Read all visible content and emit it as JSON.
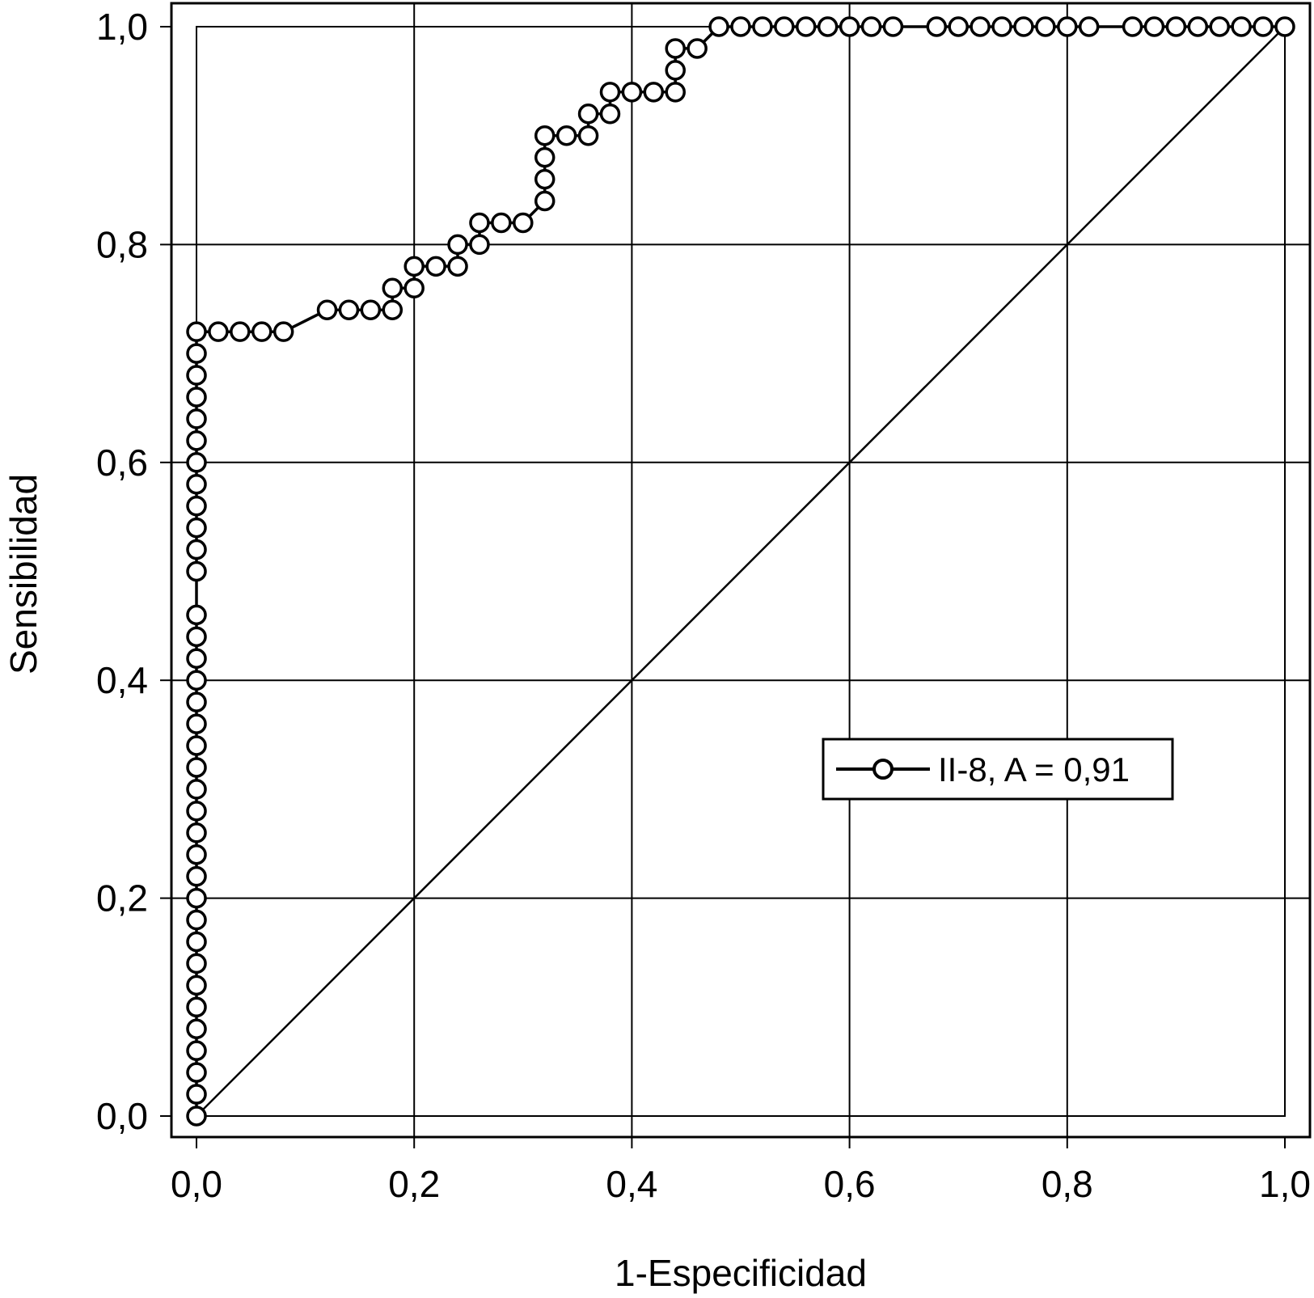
{
  "chart_data": {
    "type": "line",
    "xlabel": "1-Especificidad",
    "ylabel": "Sensibilidad",
    "xlim": [
      0.0,
      1.0
    ],
    "ylim": [
      0.0,
      1.0
    ],
    "x_ticks": [
      "0,0",
      "0,2",
      "0,4",
      "0,6",
      "0,8",
      "1,0"
    ],
    "y_ticks": [
      "0,0",
      "0,2",
      "0,4",
      "0,6",
      "0,8",
      "1,0"
    ],
    "grid": true,
    "legend_position": "middle-right",
    "reference_line": {
      "from": [
        0,
        0
      ],
      "to": [
        1,
        1
      ]
    },
    "colors": {
      "line": "#000000",
      "marker_fill": "#ffffff"
    },
    "series": [
      {
        "name": "II-8, A = 0,91",
        "marker": "open-circle",
        "points": [
          [
            0.0,
            0.0
          ],
          [
            0.0,
            0.02
          ],
          [
            0.0,
            0.04
          ],
          [
            0.0,
            0.06
          ],
          [
            0.0,
            0.08
          ],
          [
            0.0,
            0.1
          ],
          [
            0.0,
            0.12
          ],
          [
            0.0,
            0.14
          ],
          [
            0.0,
            0.16
          ],
          [
            0.0,
            0.18
          ],
          [
            0.0,
            0.2
          ],
          [
            0.0,
            0.22
          ],
          [
            0.0,
            0.24
          ],
          [
            0.0,
            0.26
          ],
          [
            0.0,
            0.28
          ],
          [
            0.0,
            0.3
          ],
          [
            0.0,
            0.32
          ],
          [
            0.0,
            0.34
          ],
          [
            0.0,
            0.36
          ],
          [
            0.0,
            0.38
          ],
          [
            0.0,
            0.4
          ],
          [
            0.0,
            0.42
          ],
          [
            0.0,
            0.44
          ],
          [
            0.0,
            0.46
          ],
          [
            0.0,
            0.5
          ],
          [
            0.0,
            0.52
          ],
          [
            0.0,
            0.54
          ],
          [
            0.0,
            0.56
          ],
          [
            0.0,
            0.58
          ],
          [
            0.0,
            0.6
          ],
          [
            0.0,
            0.62
          ],
          [
            0.0,
            0.64
          ],
          [
            0.0,
            0.66
          ],
          [
            0.0,
            0.68
          ],
          [
            0.0,
            0.7
          ],
          [
            0.0,
            0.72
          ],
          [
            0.02,
            0.72
          ],
          [
            0.04,
            0.72
          ],
          [
            0.06,
            0.72
          ],
          [
            0.08,
            0.72
          ],
          [
            0.12,
            0.74
          ],
          [
            0.14,
            0.74
          ],
          [
            0.16,
            0.74
          ],
          [
            0.18,
            0.74
          ],
          [
            0.18,
            0.76
          ],
          [
            0.2,
            0.76
          ],
          [
            0.2,
            0.78
          ],
          [
            0.22,
            0.78
          ],
          [
            0.24,
            0.78
          ],
          [
            0.24,
            0.8
          ],
          [
            0.26,
            0.8
          ],
          [
            0.26,
            0.82
          ],
          [
            0.28,
            0.82
          ],
          [
            0.3,
            0.82
          ],
          [
            0.32,
            0.84
          ],
          [
            0.32,
            0.86
          ],
          [
            0.32,
            0.88
          ],
          [
            0.32,
            0.9
          ],
          [
            0.34,
            0.9
          ],
          [
            0.36,
            0.9
          ],
          [
            0.36,
            0.92
          ],
          [
            0.38,
            0.92
          ],
          [
            0.38,
            0.94
          ],
          [
            0.4,
            0.94
          ],
          [
            0.42,
            0.94
          ],
          [
            0.44,
            0.94
          ],
          [
            0.44,
            0.96
          ],
          [
            0.44,
            0.98
          ],
          [
            0.46,
            0.98
          ],
          [
            0.48,
            1.0
          ],
          [
            0.5,
            1.0
          ],
          [
            0.52,
            1.0
          ],
          [
            0.54,
            1.0
          ],
          [
            0.56,
            1.0
          ],
          [
            0.58,
            1.0
          ],
          [
            0.6,
            1.0
          ],
          [
            0.62,
            1.0
          ],
          [
            0.64,
            1.0
          ],
          [
            0.68,
            1.0
          ],
          [
            0.7,
            1.0
          ],
          [
            0.72,
            1.0
          ],
          [
            0.74,
            1.0
          ],
          [
            0.76,
            1.0
          ],
          [
            0.78,
            1.0
          ],
          [
            0.8,
            1.0
          ],
          [
            0.82,
            1.0
          ],
          [
            0.86,
            1.0
          ],
          [
            0.88,
            1.0
          ],
          [
            0.9,
            1.0
          ],
          [
            0.92,
            1.0
          ],
          [
            0.94,
            1.0
          ],
          [
            0.96,
            1.0
          ],
          [
            0.98,
            1.0
          ],
          [
            1.0,
            1.0
          ]
        ]
      }
    ]
  }
}
